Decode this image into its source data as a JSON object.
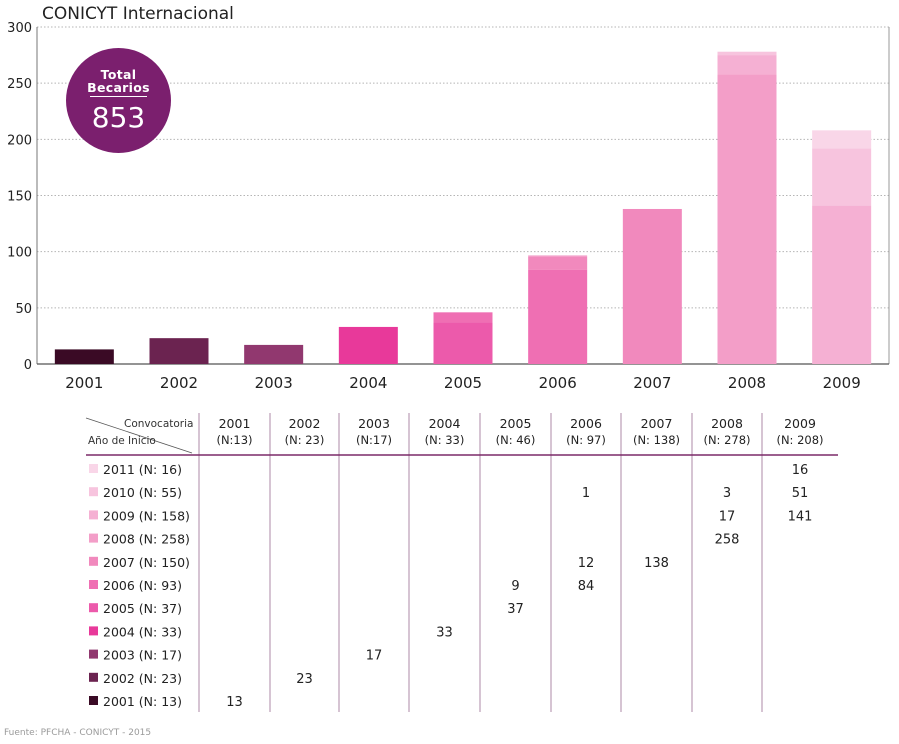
{
  "title": "CONICYT Internacional",
  "badge": {
    "label_line1": "Total",
    "label_line2": "Becarios",
    "total": "853"
  },
  "source": "Fuente: PFCHA - CONICYT - 2015",
  "colors": {
    "2001": "#3a0a25",
    "2002": "#6b2350",
    "2003": "#91386f",
    "2004": "#e8399a",
    "2005": "#ec5aab",
    "2006": "#ef6fb3",
    "2007": "#f189bd",
    "2008": "#f39ec8",
    "2009": "#f5b0d3",
    "2010": "#f7c4de",
    "2011": "#f9d6e8"
  },
  "chart_data": {
    "type": "bar",
    "stacked": true,
    "title": "CONICYT Internacional",
    "xlabel": "",
    "ylabel": "",
    "ylim": [
      0,
      300
    ],
    "yticks": [
      0,
      50,
      100,
      150,
      200,
      250,
      300
    ],
    "grid": true,
    "categories": [
      "2001",
      "2002",
      "2003",
      "2004",
      "2005",
      "2006",
      "2007",
      "2008",
      "2009"
    ],
    "series": [
      {
        "name": "2001",
        "values": [
          13,
          0,
          0,
          0,
          0,
          0,
          0,
          0,
          0
        ]
      },
      {
        "name": "2002",
        "values": [
          0,
          23,
          0,
          0,
          0,
          0,
          0,
          0,
          0
        ]
      },
      {
        "name": "2003",
        "values": [
          0,
          0,
          17,
          0,
          0,
          0,
          0,
          0,
          0
        ]
      },
      {
        "name": "2004",
        "values": [
          0,
          0,
          0,
          33,
          0,
          0,
          0,
          0,
          0
        ]
      },
      {
        "name": "2005",
        "values": [
          0,
          0,
          0,
          0,
          37,
          0,
          0,
          0,
          0
        ]
      },
      {
        "name": "2006",
        "values": [
          0,
          0,
          0,
          0,
          9,
          84,
          0,
          0,
          0
        ]
      },
      {
        "name": "2007",
        "values": [
          0,
          0,
          0,
          0,
          0,
          12,
          138,
          0,
          0
        ]
      },
      {
        "name": "2008",
        "values": [
          0,
          0,
          0,
          0,
          0,
          0,
          0,
          258,
          0
        ]
      },
      {
        "name": "2009",
        "values": [
          0,
          0,
          0,
          0,
          0,
          0,
          0,
          17,
          141
        ]
      },
      {
        "name": "2010",
        "values": [
          0,
          0,
          0,
          0,
          0,
          1,
          0,
          3,
          51
        ]
      },
      {
        "name": "2011",
        "values": [
          0,
          0,
          0,
          0,
          0,
          0,
          0,
          0,
          16
        ]
      }
    ]
  },
  "table": {
    "corner_top": "Convocatoria",
    "corner_bottom": "Año de Inicio",
    "columns": [
      {
        "year": "2001",
        "n": "(N:13)"
      },
      {
        "year": "2002",
        "n": "(N: 23)"
      },
      {
        "year": "2003",
        "n": "(N:17)"
      },
      {
        "year": "2004",
        "n": "(N: 33)"
      },
      {
        "year": "2005",
        "n": "(N: 46)"
      },
      {
        "year": "2006",
        "n": "(N: 97)"
      },
      {
        "year": "2007",
        "n": "(N: 138)"
      },
      {
        "year": "2008",
        "n": "(N: 278)"
      },
      {
        "year": "2009",
        "n": "(N: 208)"
      }
    ],
    "rows": [
      {
        "label": "2011 (N: 16)",
        "key": "2011",
        "cells": [
          "",
          "",
          "",
          "",
          "",
          "",
          "",
          "",
          "16"
        ]
      },
      {
        "label": "2010 (N: 55)",
        "key": "2010",
        "cells": [
          "",
          "",
          "",
          "",
          "",
          "1",
          "",
          "3",
          "51"
        ]
      },
      {
        "label": "2009 (N: 158)",
        "key": "2009",
        "cells": [
          "",
          "",
          "",
          "",
          "",
          "",
          "",
          "17",
          "141"
        ]
      },
      {
        "label": "2008 (N: 258)",
        "key": "2008",
        "cells": [
          "",
          "",
          "",
          "",
          "",
          "",
          "",
          "258",
          ""
        ]
      },
      {
        "label": "2007 (N: 150)",
        "key": "2007",
        "cells": [
          "",
          "",
          "",
          "",
          "",
          "12",
          "138",
          "",
          ""
        ]
      },
      {
        "label": "2006 (N: 93)",
        "key": "2006",
        "cells": [
          "",
          "",
          "",
          "",
          "9",
          "84",
          "",
          "",
          ""
        ]
      },
      {
        "label": "2005 (N: 37)",
        "key": "2005",
        "cells": [
          "",
          "",
          "",
          "",
          "37",
          "",
          "",
          "",
          ""
        ]
      },
      {
        "label": "2004 (N: 33)",
        "key": "2004",
        "cells": [
          "",
          "",
          "",
          "33",
          "",
          "",
          "",
          "",
          ""
        ]
      },
      {
        "label": "2003 (N: 17)",
        "key": "2003",
        "cells": [
          "",
          "",
          "17",
          "",
          "",
          "",
          "",
          "",
          ""
        ]
      },
      {
        "label": "2002 (N: 23)",
        "key": "2002",
        "cells": [
          "",
          "23",
          "",
          "",
          "",
          "",
          "",
          "",
          ""
        ]
      },
      {
        "label": "2001 (N: 13)",
        "key": "2001",
        "cells": [
          "13",
          "",
          "",
          "",
          "",
          "",
          "",
          "",
          ""
        ]
      }
    ]
  }
}
